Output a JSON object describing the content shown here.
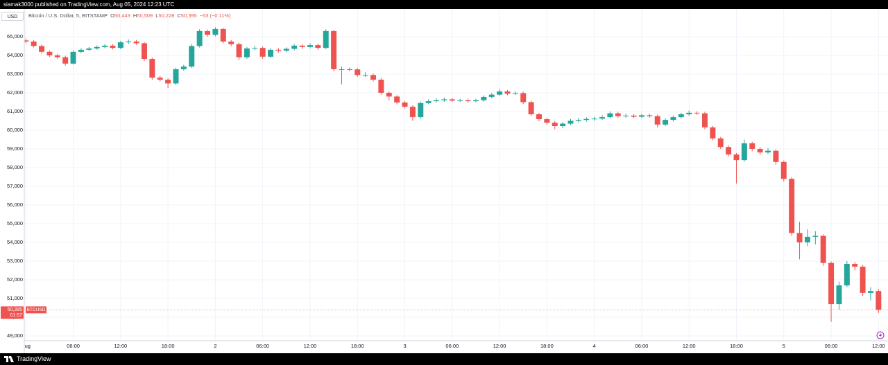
{
  "header": {
    "text": "siamak3000 published on TradingView.com, Aug 05, 2024 12:23 UTC"
  },
  "footer": {
    "brand": "TradingView"
  },
  "currency": "USD",
  "legend": {
    "title": "Bitcoin / U.S. Dollar, 5, BITSTAMP",
    "fields": [
      {
        "key": "O",
        "value": "50,443"
      },
      {
        "key": "H",
        "value": "50,509"
      },
      {
        "key": "L",
        "value": "50,228"
      },
      {
        "key": "C",
        "value": "50,395"
      }
    ],
    "change": "−53 (−0.11%)"
  },
  "chart_data": {
    "type": "candlestick",
    "up_color": "#26a69a",
    "down_color": "#ef5350",
    "grid": true,
    "last_price": {
      "value": 50395,
      "label": "50,395"
    },
    "countdown": "01:57",
    "symbol_tag": "BTCUSD",
    "xlim": [
      -0.2,
      109.2
    ],
    "ylim": [
      48740,
      66480
    ],
    "yticks": [
      {
        "value": 49000,
        "label": "49,000"
      },
      {
        "value": 50000,
        "label": "50,000"
      },
      {
        "value": 51000,
        "label": "51,000"
      },
      {
        "value": 52000,
        "label": "52,000"
      },
      {
        "value": 53000,
        "label": "53,000"
      },
      {
        "value": 54000,
        "label": "54,000"
      },
      {
        "value": 55000,
        "label": "55,000"
      },
      {
        "value": 56000,
        "label": "56,000"
      },
      {
        "value": 57000,
        "label": "57,000"
      },
      {
        "value": 58000,
        "label": "58,000"
      },
      {
        "value": 59000,
        "label": "59,000"
      },
      {
        "value": 60000,
        "label": "60,000"
      },
      {
        "value": 61000,
        "label": "61,000"
      },
      {
        "value": 62000,
        "label": "62,000"
      },
      {
        "value": 63000,
        "label": "63,000"
      },
      {
        "value": 64000,
        "label": "64,000"
      },
      {
        "value": 65000,
        "label": "65,000"
      }
    ],
    "xticks": [
      {
        "value": 0,
        "label": "Aug"
      },
      {
        "value": 6,
        "label": "06:00"
      },
      {
        "value": 12,
        "label": "12:00"
      },
      {
        "value": 18,
        "label": "18:00"
      },
      {
        "value": 24,
        "label": "2"
      },
      {
        "value": 30,
        "label": "06:00"
      },
      {
        "value": 36,
        "label": "12:00"
      },
      {
        "value": 42,
        "label": "18:00"
      },
      {
        "value": 48,
        "label": "3"
      },
      {
        "value": 54,
        "label": "06:00"
      },
      {
        "value": 60,
        "label": "12:00"
      },
      {
        "value": 66,
        "label": "18:00"
      },
      {
        "value": 72,
        "label": "4"
      },
      {
        "value": 78,
        "label": "06:00"
      },
      {
        "value": 84,
        "label": "12:00"
      },
      {
        "value": 90,
        "label": "18:00"
      },
      {
        "value": 96,
        "label": "5"
      },
      {
        "value": 102,
        "label": "06:00"
      },
      {
        "value": 108,
        "label": "12:00"
      }
    ],
    "x": [
      0,
      1,
      2,
      3,
      4,
      5,
      6,
      7,
      8,
      9,
      10,
      11,
      12,
      13,
      14,
      15,
      16,
      17,
      18,
      19,
      20,
      21,
      22,
      23,
      24,
      25,
      26,
      27,
      28,
      29,
      30,
      31,
      32,
      33,
      34,
      35,
      36,
      37,
      38,
      39,
      40,
      41,
      42,
      43,
      44,
      45,
      46,
      47,
      48,
      49,
      50,
      51,
      52,
      53,
      54,
      55,
      56,
      57,
      58,
      59,
      60,
      61,
      62,
      63,
      64,
      65,
      66,
      67,
      68,
      69,
      70,
      71,
      72,
      73,
      74,
      75,
      76,
      77,
      78,
      79,
      80,
      81,
      82,
      83,
      84,
      85,
      86,
      87,
      88,
      89,
      90,
      91,
      92,
      93,
      94,
      95,
      96,
      97,
      98,
      99,
      100,
      101,
      102,
      103,
      104,
      105,
      106,
      107,
      108
    ],
    "open": [
      64800,
      64740,
      64500,
      64190,
      64000,
      63900,
      63560,
      64190,
      64300,
      64370,
      64450,
      64520,
      64400,
      64700,
      64740,
      64650,
      63810,
      62810,
      62700,
      62500,
      63260,
      63400,
      64500,
      65300,
      65100,
      65410,
      64740,
      64600,
      63900,
      64370,
      64400,
      63930,
      64300,
      64250,
      64350,
      64520,
      64450,
      64550,
      64400,
      65300,
      63260,
      63260,
      63250,
      62950,
      62950,
      62700,
      62000,
      61800,
      61480,
      61250,
      60700,
      61450,
      61550,
      61600,
      61650,
      61580,
      61600,
      61550,
      61600,
      61780,
      61900,
      62070,
      61950,
      61980,
      61500,
      60850,
      60590,
      60400,
      60220,
      60350,
      60500,
      60550,
      60600,
      60620,
      60700,
      60900,
      60750,
      60780,
      60720,
      60800,
      60750,
      60300,
      60550,
      60700,
      60850,
      60930,
      60900,
      60150,
      59560,
      59100,
      58700,
      58400,
      59300,
      59000,
      58810,
      58900,
      58300,
      57400,
      54500,
      54000,
      54300,
      54350,
      52900,
      50700,
      51700,
      52850,
      52700,
      51300,
      51400
    ],
    "high": [
      64900,
      64820,
      64580,
      64260,
      64080,
      63980,
      64270,
      64380,
      64450,
      64530,
      64600,
      64600,
      64780,
      64850,
      64830,
      64720,
      63880,
      62900,
      62780,
      63340,
      63500,
      64600,
      65400,
      65380,
      65500,
      65480,
      64820,
      64680,
      64450,
      64500,
      64480,
      64380,
      64380,
      64430,
      64600,
      64600,
      64650,
      64630,
      65400,
      65350,
      63400,
      63350,
      63330,
      63100,
      63030,
      62780,
      62080,
      61880,
      61560,
      61330,
      61530,
      61650,
      61700,
      61750,
      61730,
      61680,
      61680,
      61680,
      61860,
      61980,
      62200,
      62150,
      62080,
      62060,
      61580,
      60930,
      60670,
      60480,
      60430,
      60600,
      60650,
      60700,
      60720,
      60800,
      61000,
      60980,
      60880,
      60860,
      60880,
      60880,
      60830,
      60630,
      60780,
      60930,
      61050,
      61010,
      60980,
      60230,
      59640,
      59180,
      58780,
      59500,
      59380,
      59100,
      59050,
      58980,
      58380,
      57480,
      55100,
      54700,
      54600,
      54430,
      52980,
      51900,
      53000,
      52950,
      52780,
      51600,
      51500
    ],
    "low": [
      64650,
      64420,
      64100,
      63920,
      63820,
      63450,
      63500,
      64120,
      64230,
      64300,
      64380,
      64320,
      64330,
      64620,
      64560,
      63700,
      62700,
      62600,
      62250,
      62420,
      63180,
      63330,
      64420,
      65000,
      65020,
      64650,
      64500,
      63750,
      63820,
      64280,
      63820,
      63850,
      64150,
      64170,
      64270,
      64360,
      64370,
      64300,
      64330,
      63150,
      62450,
      63150,
      62850,
      62850,
      62600,
      61900,
      61600,
      61380,
      61150,
      60500,
      60620,
      61380,
      61480,
      61520,
      61500,
      61500,
      61470,
      61480,
      61520,
      61700,
      61820,
      61870,
      61880,
      61400,
      60750,
      60480,
      60300,
      60050,
      60100,
      60270,
      60420,
      60460,
      60500,
      60540,
      60620,
      60660,
      60670,
      60640,
      60640,
      60670,
      60150,
      60220,
      60470,
      60620,
      60770,
      60820,
      60050,
      59450,
      59000,
      58600,
      57150,
      58320,
      58880,
      58700,
      58720,
      58150,
      57250,
      54350,
      53100,
      53800,
      53900,
      52750,
      49750,
      50400,
      51600,
      52500,
      51150,
      50900,
      50228
    ],
    "close": [
      64740,
      64500,
      64190,
      64000,
      63900,
      63560,
      64190,
      64300,
      64370,
      64450,
      64520,
      64400,
      64700,
      64740,
      64650,
      63810,
      62810,
      62700,
      62500,
      63260,
      63400,
      64500,
      65300,
      65100,
      65410,
      64740,
      64600,
      63900,
      64370,
      64400,
      63930,
      64300,
      64250,
      64350,
      64520,
      64450,
      64550,
      64400,
      65300,
      63260,
      63260,
      63250,
      62950,
      62950,
      62700,
      62000,
      61800,
      61480,
      61250,
      60700,
      61450,
      61550,
      61600,
      61650,
      61580,
      61600,
      61550,
      61600,
      61780,
      61900,
      62070,
      61950,
      61980,
      61500,
      60850,
      60590,
      60400,
      60220,
      60350,
      60500,
      60550,
      60600,
      60620,
      60700,
      60900,
      60750,
      60780,
      60720,
      60800,
      60750,
      60300,
      60550,
      60700,
      60850,
      60930,
      60900,
      60150,
      59560,
      59100,
      58700,
      58400,
      59300,
      59000,
      58810,
      58900,
      58300,
      57400,
      54500,
      54000,
      54300,
      54350,
      52900,
      50700,
      51700,
      52850,
      52700,
      51300,
      51400,
      50395
    ]
  }
}
